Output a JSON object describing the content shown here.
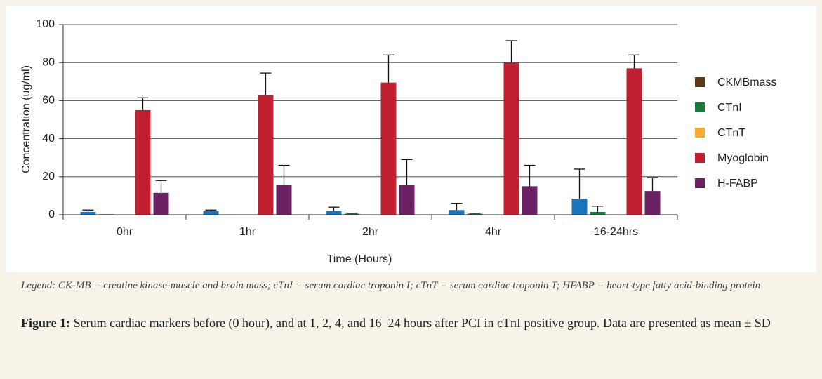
{
  "chart_data": {
    "type": "bar",
    "x_label": "Time (Hours)",
    "y_label": "Concentration (ug/ml)",
    "categories": [
      "0hr",
      "1hr",
      "2hr",
      "4hr",
      "16-24hrs"
    ],
    "series": [
      {
        "name": "CKMBmass",
        "color": "#1b75bc",
        "legend_color": "#5c3a1a",
        "values": [
          1.5,
          2,
          2,
          2.5,
          8.5
        ],
        "errors": [
          1,
          0.5,
          2,
          3.5,
          15.5
        ]
      },
      {
        "name": "CTnI",
        "color": "#1a7a3c",
        "values": [
          0.3,
          0.2,
          0.5,
          0.5,
          1.5
        ],
        "errors": [
          0,
          0,
          0.3,
          0.3,
          3
        ]
      },
      {
        "name": "CTnT",
        "color": "#f7a930",
        "values": [
          0,
          0,
          0,
          0,
          0
        ],
        "errors": [
          0,
          0,
          0,
          0,
          0
        ]
      },
      {
        "name": "Myoglobin",
        "color": "#c0202f",
        "values": [
          55,
          63,
          69.5,
          80,
          77
        ],
        "errors": [
          6.5,
          11.5,
          14.5,
          11.5,
          7
        ]
      },
      {
        "name": "H-FABP",
        "color": "#6a2164",
        "values": [
          11.5,
          15.5,
          15.5,
          15,
          12.5
        ],
        "errors": [
          6.5,
          10.5,
          13.5,
          11,
          7
        ]
      }
    ],
    "ylim": [
      0,
      100
    ],
    "yticks": [
      0,
      20,
      40,
      60,
      80,
      100
    ],
    "grid": true,
    "legend": "right"
  },
  "legend_note": "Legend: CK-MB = creatine kinase-muscle and brain mass; cTnI = serum cardiac troponin I; cTnT = serum cardiac troponin T; HFABP = heart-type fatty acid-binding protein",
  "caption": {
    "label": "Figure 1:",
    "text": "Serum cardiac markers before (0 hour), and at 1, 2, 4, and 16–24 hours after PCI in cTnI positive group. Data are presented as mean ± SD"
  }
}
